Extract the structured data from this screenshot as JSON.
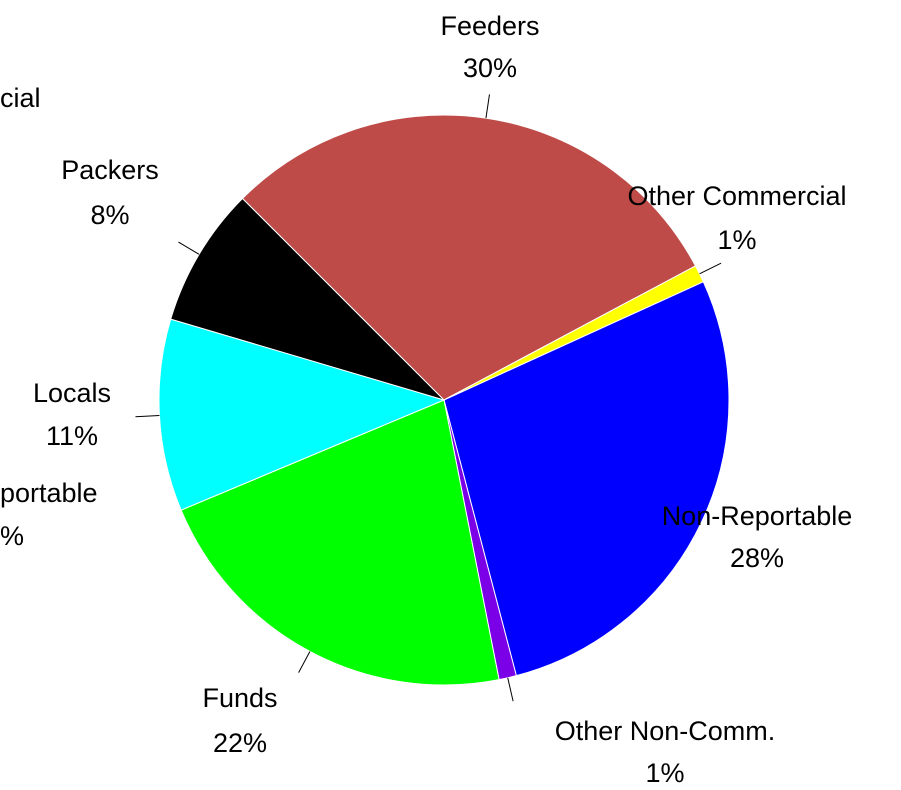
{
  "chart_data": {
    "type": "pie",
    "categories": [
      "Feeders",
      "Other Commercial",
      "Non-Reportable",
      "Other Non-Comm.",
      "Funds",
      "Locals",
      "Packers"
    ],
    "values": [
      30,
      1,
      28,
      1,
      22,
      11,
      8
    ],
    "value_labels": [
      "30%",
      "1%",
      "28%",
      "1%",
      "22%",
      "11%",
      "8%"
    ],
    "colors": [
      "#be4b48",
      "#ffff00",
      "#0000ff",
      "#7b00e8",
      "#00ff00",
      "#00ffff",
      "#000000"
    ],
    "annotations": [
      "cial",
      "portable",
      "%"
    ]
  }
}
